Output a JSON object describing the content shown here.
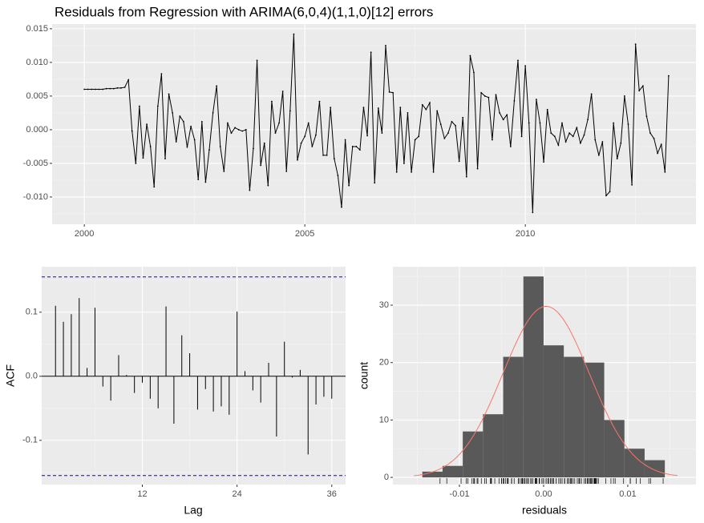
{
  "chart_data": [
    {
      "type": "line",
      "title": "Residuals from Regression with ARIMA(6,0,4)(1,1,0)[12] errors",
      "color": "#000000",
      "grid": true,
      "x": [
        2000,
        2000.083,
        2000.167,
        2000.25,
        2000.333,
        2000.417,
        2000.5,
        2000.583,
        2000.667,
        2000.75,
        2000.833,
        2000.917,
        2001,
        2001.083,
        2001.167,
        2001.25,
        2001.333,
        2001.417,
        2001.5,
        2001.583,
        2001.667,
        2001.75,
        2001.833,
        2001.917,
        2002,
        2002.083,
        2002.167,
        2002.25,
        2002.333,
        2002.417,
        2002.5,
        2002.583,
        2002.667,
        2002.75,
        2002.833,
        2002.917,
        2003,
        2003.083,
        2003.167,
        2003.25,
        2003.333,
        2003.417,
        2003.5,
        2003.583,
        2003.667,
        2003.75,
        2003.833,
        2003.917,
        2004,
        2004.083,
        2004.167,
        2004.25,
        2004.333,
        2004.417,
        2004.5,
        2004.583,
        2004.667,
        2004.75,
        2004.833,
        2004.917,
        2005,
        2005.083,
        2005.167,
        2005.25,
        2005.333,
        2005.417,
        2005.5,
        2005.583,
        2005.667,
        2005.75,
        2005.833,
        2005.917,
        2006,
        2006.083,
        2006.167,
        2006.25,
        2006.333,
        2006.417,
        2006.5,
        2006.583,
        2006.667,
        2006.75,
        2006.833,
        2006.917,
        2007,
        2007.083,
        2007.167,
        2007.25,
        2007.333,
        2007.417,
        2007.5,
        2007.583,
        2007.667,
        2007.75,
        2007.833,
        2007.917,
        2008,
        2008.083,
        2008.167,
        2008.25,
        2008.333,
        2008.417,
        2008.5,
        2008.583,
        2008.667,
        2008.75,
        2008.833,
        2008.917,
        2009,
        2009.083,
        2009.167,
        2009.25,
        2009.333,
        2009.417,
        2009.5,
        2009.583,
        2009.667,
        2009.75,
        2009.833,
        2009.917,
        2010,
        2010.083,
        2010.167,
        2010.25,
        2010.333,
        2010.417,
        2010.5,
        2010.583,
        2010.667,
        2010.75,
        2010.833,
        2010.917,
        2011,
        2011.083,
        2011.167,
        2011.25,
        2011.333,
        2011.417,
        2011.5,
        2011.583,
        2011.667,
        2011.75,
        2011.833,
        2011.917,
        2012,
        2012.083,
        2012.167,
        2012.25,
        2012.333,
        2012.417,
        2012.5,
        2012.583,
        2012.667,
        2012.75,
        2012.833,
        2012.917,
        2013,
        2013.083,
        2013.167,
        2013.25
      ],
      "values": [
        0.006,
        0.006,
        0.006,
        0.006,
        0.006,
        0.006,
        0.0061,
        0.0061,
        0.0061,
        0.0062,
        0.0062,
        0.0063,
        0.0074,
        -0.0002,
        -0.005,
        0.0035,
        -0.0042,
        0.0008,
        -0.0025,
        -0.0085,
        0.0035,
        0.0083,
        -0.0043,
        0.0053,
        0.0025,
        -0.0018,
        0.002,
        0.0012,
        -0.0026,
        0.0005,
        -0.0015,
        -0.0074,
        0.0012,
        -0.0078,
        -0.003,
        0.0025,
        0.0065,
        -0.0025,
        -0.0062,
        0.001,
        -0.0005,
        0.0003,
        0,
        -0.0002,
        0,
        -0.009,
        -0.0028,
        0.0103,
        -0.0053,
        -0.002,
        -0.0083,
        0.0042,
        -0.0005,
        0.001,
        0.0057,
        -0.0062,
        0.0028,
        0.0142,
        -0.0045,
        -0.002,
        -0.001,
        0.001,
        -0.0025,
        -0.0008,
        0.0042,
        -0.0038,
        -0.0038,
        0.0033,
        -0.0043,
        -0.0068,
        -0.0115,
        -0.0015,
        -0.0083,
        -0.0025,
        -0.0025,
        -0.003,
        0.0033,
        -0.0009,
        0.0115,
        -0.0079,
        0.0032,
        -0.0005,
        0.0125,
        0.0056,
        0.0055,
        -0.0063,
        0.0033,
        -0.005,
        0.0025,
        -0.0063,
        -0.0015,
        -0.001,
        0.0037,
        0.003,
        0.004,
        -0.0063,
        0.0028,
        0.0008,
        -0.0013,
        -0.0005,
        0.0012,
        0.0006,
        -0.0047,
        0.0018,
        -0.007,
        0.011,
        0.0085,
        -0.0058,
        0.0055,
        0.005,
        0.0048,
        -0.0015,
        0.0052,
        0.0025,
        0.0015,
        0.0022,
        -0.0025,
        0.0043,
        0.0103,
        -0.001,
        0.0095,
        0.001,
        -0.0123,
        0.0045,
        0.001,
        -0.0048,
        0.003,
        -0.0005,
        -0.001,
        -0.0023,
        0.001,
        -0.0018,
        -0.0005,
        -0.001,
        0.0003,
        -0.002,
        -0.0008,
        0.0015,
        0.0053,
        -0.0015,
        -0.0038,
        -0.0018,
        -0.0098,
        -0.0092,
        0.001,
        -0.0043,
        -0.002,
        0.005,
        0.0008,
        -0.0082,
        0.0127,
        0.0058,
        0.0065,
        0.002,
        -0.0005,
        -0.0013,
        -0.0035,
        -0.0022,
        -0.0063,
        0.008
      ],
      "xlim": [
        1999.27,
        2013.87
      ],
      "xticks": [
        2000,
        2005,
        2010
      ],
      "ylim": [
        -0.01405,
        0.0157
      ],
      "yticks": [
        {
          "value": -0.01,
          "label": "-0.010"
        },
        -0.005,
        {
          "value": 0,
          "label": "0.000"
        },
        0.005,
        {
          "value": 0.01,
          "label": "0.010"
        },
        0.015
      ]
    },
    {
      "type": "bar",
      "xlabel": "Lag",
      "ylabel": "ACF",
      "color": "#000000",
      "grid": true,
      "x": [
        1,
        2,
        3,
        4,
        5,
        6,
        7,
        8,
        9,
        10,
        11,
        12,
        13,
        14,
        15,
        16,
        17,
        18,
        19,
        20,
        21,
        22,
        23,
        24,
        25,
        26,
        27,
        28,
        29,
        30,
        31,
        32,
        33,
        34,
        35,
        36
      ],
      "values": [
        0.11,
        0.085,
        0.097,
        0.122,
        0.013,
        0.107,
        -0.016,
        -0.038,
        0.033,
        0.002,
        -0.026,
        -0.01,
        -0.035,
        -0.05,
        0.109,
        -0.074,
        0.064,
        0.036,
        -0.052,
        -0.02,
        -0.055,
        -0.047,
        -0.06,
        0.101,
        0.008,
        -0.022,
        -0.041,
        0.021,
        -0.094,
        0.054,
        -0.002,
        0.01,
        -0.122,
        -0.044,
        -0.032,
        -0.035
      ],
      "ci": [
        -0.155,
        0.155
      ],
      "ci_color": "#0000ff",
      "xlim": [
        -0.75,
        37.75
      ],
      "xticks": [
        12,
        24,
        36
      ],
      "ylim": [
        -0.169,
        0.171
      ],
      "yticks": [
        -0.1,
        {
          "value": 0,
          "label": "0.0"
        },
        0.1
      ]
    },
    {
      "type": "histogram",
      "xlabel": "residuals",
      "ylabel": "count",
      "color": "#595959",
      "grid": true,
      "bins": [
        -0.0144,
        -0.012,
        -0.0096,
        -0.0072,
        -0.0048,
        -0.0024,
        0,
        0.0024,
        0.0048,
        0.0072,
        0.0096,
        0.012,
        0.0144
      ],
      "counts": [
        1,
        2,
        8,
        11,
        21,
        35,
        23,
        21,
        20,
        10,
        5,
        3
      ],
      "curve": {
        "mean": 0.0003,
        "sd": 0.00514,
        "color": "#f8766d",
        "xlim": [
          -0.0154,
          0.0159
        ]
      },
      "rug": true,
      "xlim": [
        -0.0179,
        0.0181
      ],
      "xticks": [
        -0.01,
        {
          "value": 0,
          "label": "0.00"
        },
        0.01
      ],
      "ylim": [
        -1.25,
        36.7
      ],
      "yticks": [
        0,
        10,
        20,
        30
      ]
    }
  ]
}
